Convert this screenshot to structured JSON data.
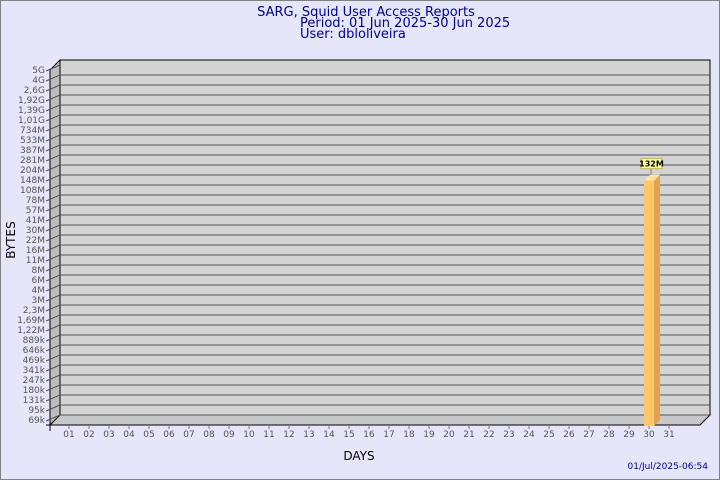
{
  "title": "SARG, Squid User Access Reports",
  "period": "Period: 01 Jun 2025-30 Jun 2025",
  "user": "User: dbloliveira",
  "timestamp": "01/Jul/2025-06:54",
  "chart_data": {
    "type": "bar",
    "xlabel": "DAYS",
    "ylabel": "BYTES",
    "y_scale": "log",
    "y_ticks": [
      "5G",
      "4G",
      "2,6G",
      "1,92G",
      "1,39G",
      "1,01G",
      "734M",
      "533M",
      "387M",
      "281M",
      "204M",
      "148M",
      "108M",
      "78M",
      "57M",
      "41M",
      "30M",
      "22M",
      "16M",
      "11M",
      "8M",
      "6M",
      "4M",
      "3M",
      "2,3M",
      "1,69M",
      "1,22M",
      "889k",
      "646k",
      "469k",
      "341k",
      "247k",
      "180k",
      "131k",
      "95k",
      "69k"
    ],
    "categories": [
      "01",
      "02",
      "03",
      "04",
      "05",
      "06",
      "07",
      "08",
      "09",
      "10",
      "11",
      "12",
      "13",
      "14",
      "15",
      "16",
      "17",
      "18",
      "19",
      "20",
      "21",
      "22",
      "23",
      "24",
      "25",
      "26",
      "27",
      "28",
      "29",
      "30",
      "31"
    ],
    "bars": [
      {
        "day": "30",
        "value": "132M",
        "value_bytes": 132000000
      }
    ],
    "grid": true,
    "colors": {
      "bar_front": "#ffc66a",
      "bar_side": "#e0a44c",
      "panel": "#d3d3d3",
      "label_box": "#ffff99"
    }
  }
}
